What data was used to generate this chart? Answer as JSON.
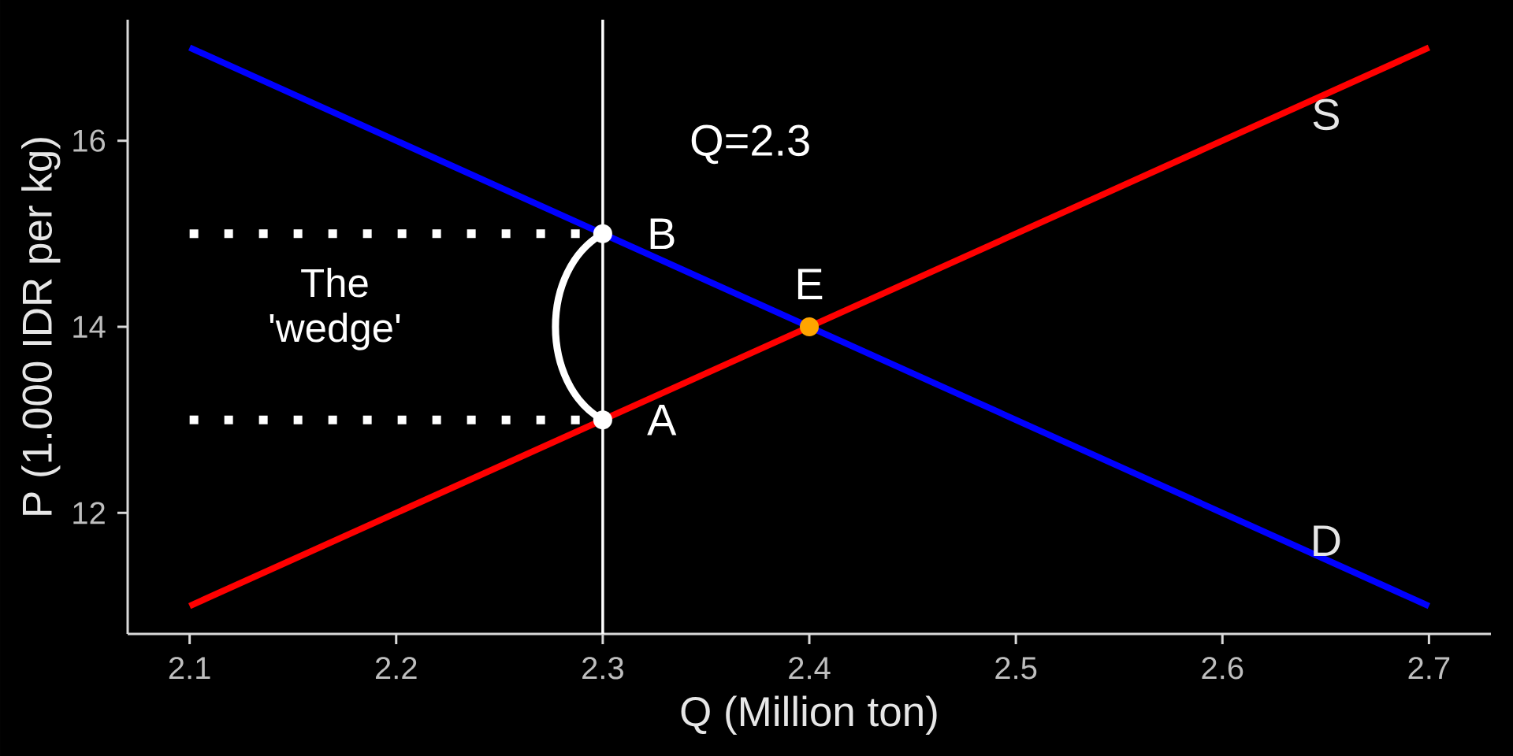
{
  "chart_data": {
    "type": "line",
    "xlabel": "Q (Million ton)",
    "ylabel": "P (1.000 IDR per kg)",
    "xlim": [
      2.07,
      2.73
    ],
    "ylim": [
      10.7,
      17.3
    ],
    "xticks": [
      2.1,
      2.2,
      2.3,
      2.4,
      2.5,
      2.6,
      2.7
    ],
    "yticks": [
      12,
      14,
      16
    ],
    "series": [
      {
        "name": "S",
        "color": "#ff0000",
        "x": [
          2.1,
          2.7
        ],
        "values": [
          11,
          17
        ]
      },
      {
        "name": "D",
        "color": "#0000ff",
        "x": [
          2.1,
          2.7
        ],
        "values": [
          17,
          11
        ]
      },
      {
        "color": "#ffffff",
        "x": [
          2.1,
          2.3
        ],
        "values": [
          15,
          15
        ],
        "line_style": "dotted"
      },
      {
        "color": "#ffffff",
        "x": [
          2.1,
          2.3
        ],
        "values": [
          13,
          13
        ],
        "line_style": "dotted"
      },
      {
        "type": "scatter",
        "marker": "circle",
        "x": [
          2.3,
          2.3,
          2.4
        ],
        "values": [
          15,
          13,
          14
        ],
        "colors": [
          "#ffffff",
          "#ffffff",
          "#ffa500"
        ],
        "value_labels": [
          "B",
          "A",
          "E"
        ]
      }
    ],
    "ref_lines": [
      {
        "axis": "x",
        "value": 2.3,
        "label": "Q=2.3",
        "color": "#ffffff"
      }
    ],
    "annotations": [
      "The 'wedge'"
    ]
  }
}
